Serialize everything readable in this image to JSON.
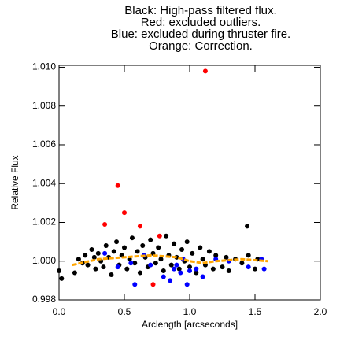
{
  "chart_data": {
    "type": "scatter",
    "title": [
      "Black: High-pass filtered flux.",
      "Red: excluded outliers.",
      "Blue: excluded during thruster fire.",
      "Orange: Correction."
    ],
    "x_label": "Arclength [arcseconds]",
    "y_label": "Relative Flux",
    "xlim": [
      0,
      2
    ],
    "xticks": [
      {
        "value": 0,
        "label": "0.0"
      },
      0.5,
      {
        "value": 1,
        "label": "1.0"
      },
      1.5,
      {
        "value": 2,
        "label": "2.0"
      }
    ],
    "ylim": [
      0.998,
      1.0101
    ],
    "yticks": [
      0.998,
      {
        "value": 1,
        "label": "1.000"
      },
      1.002,
      1.004,
      1.006,
      1.008,
      {
        "value": 1.01,
        "label": "1.010"
      }
    ],
    "series": [
      {
        "color": "#000000",
        "mode": "markers",
        "x": [
          0.0,
          0.02,
          0.12,
          0.15,
          0.18,
          0.2,
          0.22,
          0.25,
          0.27,
          0.28,
          0.3,
          0.32,
          0.34,
          0.36,
          0.38,
          0.4,
          0.42,
          0.44,
          0.46,
          0.48,
          0.5,
          0.52,
          0.54,
          0.56,
          0.58,
          0.6,
          0.62,
          0.64,
          0.66,
          0.68,
          0.7,
          0.72,
          0.74,
          0.76,
          0.78,
          0.8,
          0.82,
          0.84,
          0.86,
          0.88,
          0.9,
          0.92,
          0.94,
          0.96,
          0.98,
          1.0,
          1.02,
          1.05,
          1.08,
          1.1,
          1.12,
          1.15,
          1.18,
          1.2,
          1.25,
          1.28,
          1.3,
          1.35,
          1.4,
          1.44,
          1.45,
          1.5,
          1.52
        ],
        "values": [
          0.9995,
          0.9991,
          0.9994,
          1.0001,
          0.9999,
          1.0003,
          0.9998,
          1.0006,
          1.0002,
          0.9996,
          1.0004,
          1.0,
          0.9997,
          1.0008,
          1.0002,
          0.9993,
          1.0005,
          1.001,
          0.9998,
          1.0003,
          1.0007,
          0.9996,
          1.0001,
          1.0012,
          0.9999,
          1.0005,
          0.9994,
          1.0008,
          1.0002,
          0.9997,
          1.0011,
          1.0004,
          0.9999,
          1.0007,
          1.0001,
          0.9995,
          1.0013,
          1.0003,
          0.9998,
          1.0009,
          1.0002,
          0.9996,
          1.0006,
          1.0,
          1.001,
          0.9997,
          1.0004,
          0.9994,
          1.0007,
          1.0001,
          0.9998,
          1.0005,
          0.9996,
          1.0003,
          0.9997,
          1.0002,
          0.9995,
          1.0001,
          0.9999,
          1.0018,
          1.0003,
          0.9996,
          1.0001
        ]
      },
      {
        "color": "#0000ff",
        "mode": "markers",
        "x": [
          0.35,
          0.45,
          0.55,
          0.58,
          0.65,
          0.7,
          0.8,
          0.85,
          0.88,
          0.9,
          0.93,
          0.95,
          0.98,
          1.0,
          1.05,
          1.1,
          1.2,
          1.3,
          1.45,
          1.55,
          1.57
        ],
        "values": [
          1.0004,
          0.9997,
          0.9999,
          0.9988,
          1.0003,
          0.9998,
          0.9992,
          0.999,
          0.9996,
          0.9998,
          0.9994,
          1.0001,
          0.9988,
          0.9995,
          0.9996,
          0.9992,
          1.0001,
          1.0,
          0.9997,
          1.0001,
          0.9996
        ]
      },
      {
        "color": "#ff0000",
        "mode": "markers",
        "x": [
          1.12,
          0.45,
          0.5,
          0.35,
          0.62,
          0.77,
          0.72
        ],
        "values": [
          1.0098,
          1.0039,
          1.0025,
          1.0019,
          1.0018,
          1.0013,
          0.9988
        ]
      },
      {
        "color": "#ffa500",
        "mode": "line",
        "x": [
          0.1,
          0.3,
          0.5,
          0.7,
          0.9,
          1.0,
          1.1,
          1.2,
          1.4,
          1.6
        ],
        "values": [
          0.9998,
          1.0001,
          1.0002,
          1.0003,
          1.0002,
          1.0,
          0.9999,
          1.0,
          1.0001,
          1.0
        ]
      }
    ]
  }
}
